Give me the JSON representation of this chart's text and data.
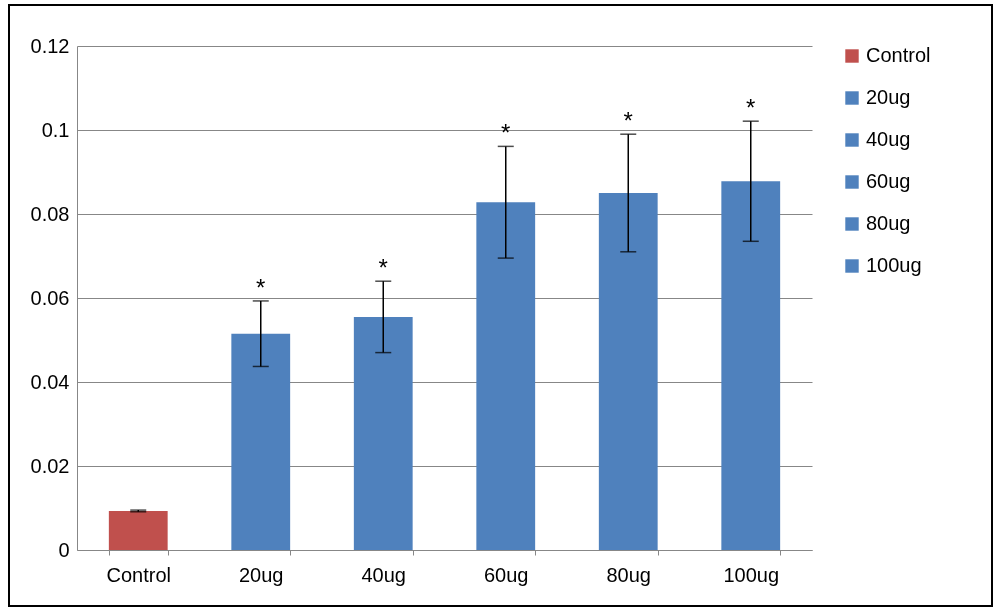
{
  "chart_data": {
    "type": "bar",
    "stacked": true,
    "categories": [
      "Control",
      "20ug",
      "40ug",
      "60ug",
      "80ug",
      "100ug"
    ],
    "series": [
      {
        "name": "Control",
        "color": "#c0504d",
        "values": [
          0.0093,
          null,
          null,
          null,
          null,
          null
        ],
        "errors": [
          0.0002,
          null,
          null,
          null,
          null,
          null
        ]
      },
      {
        "name": "20ug",
        "color": "#4f81bd",
        "values": [
          null,
          0.0515,
          null,
          null,
          null,
          null
        ],
        "errors": [
          null,
          0.0078,
          null,
          null,
          null,
          null
        ]
      },
      {
        "name": "40ug",
        "color": "#4f81bd",
        "values": [
          null,
          null,
          0.0555,
          null,
          null,
          null
        ],
        "errors": [
          null,
          null,
          0.0085,
          null,
          null,
          null
        ]
      },
      {
        "name": "60ug",
        "color": "#4f81bd",
        "values": [
          null,
          null,
          null,
          0.0828,
          null,
          null
        ],
        "errors": [
          null,
          null,
          null,
          0.0133,
          null,
          null
        ]
      },
      {
        "name": "80ug",
        "color": "#4f81bd",
        "values": [
          null,
          null,
          null,
          null,
          0.085,
          null
        ],
        "errors": [
          null,
          null,
          null,
          null,
          0.014,
          null
        ]
      },
      {
        "name": "100ug",
        "color": "#4f81bd",
        "values": [
          null,
          null,
          null,
          null,
          null,
          0.0878
        ],
        "errors": [
          null,
          null,
          null,
          null,
          null,
          0.0143
        ]
      }
    ],
    "ylim": [
      0,
      0.12
    ],
    "yticks": [
      0,
      0.02,
      0.04,
      0.06,
      0.08,
      0.1,
      0.12
    ],
    "grid": "y",
    "legend": "right",
    "annotations": [
      {
        "text": "*",
        "x": "20ug",
        "y": 0.0593
      },
      {
        "text": "*",
        "x": "40ug",
        "y": 0.064
      },
      {
        "text": "*",
        "x": "60ug",
        "y": 0.0961
      },
      {
        "text": "*",
        "x": "80ug",
        "y": 0.099
      },
      {
        "text": "*",
        "x": "100ug",
        "y": 0.1021
      }
    ]
  }
}
